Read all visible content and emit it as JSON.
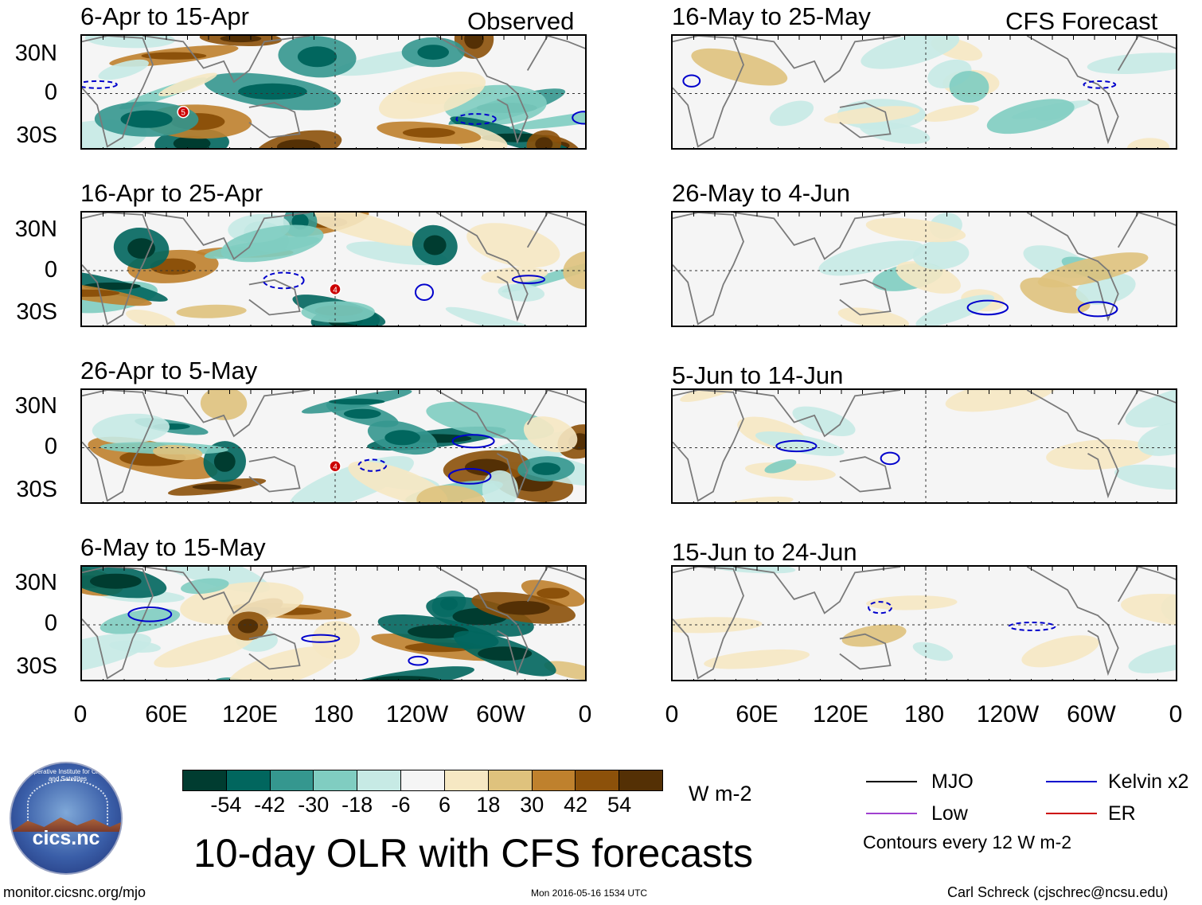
{
  "header": {
    "observed_label": "Observed",
    "forecast_label": "CFS Forecast"
  },
  "panels_left": [
    {
      "title": "6-Apr to 15-Apr",
      "markers": [
        "5"
      ]
    },
    {
      "title": "16-Apr to 25-Apr",
      "markers": [
        "4"
      ]
    },
    {
      "title": "26-Apr to 5-May",
      "markers": [
        "4"
      ]
    },
    {
      "title": "6-May to 15-May",
      "markers": []
    }
  ],
  "panels_right": [
    {
      "title": "16-May to 25-May"
    },
    {
      "title": "26-May to 4-Jun"
    },
    {
      "title": "5-Jun to 14-Jun"
    },
    {
      "title": "15-Jun to 24-Jun"
    }
  ],
  "lat_labels": [
    "30N",
    "0",
    "30S"
  ],
  "lon_labels": [
    "0",
    "60E",
    "120E",
    "180",
    "120W",
    "60W",
    "0"
  ],
  "colorbar": {
    "colors": [
      "#003c30",
      "#01665e",
      "#35978f",
      "#80cdc1",
      "#c7eae5",
      "#f5f5f5",
      "#f6e8c3",
      "#dfc27d",
      "#bf812d",
      "#8c510a",
      "#543005"
    ],
    "ticks": [
      "-54",
      "-42",
      "-30",
      "-18",
      "-6",
      "6",
      "18",
      "30",
      "42",
      "54"
    ],
    "unit": "W m-2"
  },
  "title": "10-day OLR with CFS forecasts",
  "legend": {
    "items": [
      {
        "label": "MJO",
        "color": "#000000"
      },
      {
        "label": "Kelvin x2",
        "color": "#0000cc"
      },
      {
        "label": "Low",
        "color": "#a040d0"
      },
      {
        "label": "ER",
        "color": "#cc0000"
      }
    ],
    "contours_note": "Contours every 12 W m-2"
  },
  "logo": {
    "text": "cics.nc",
    "arc_text": "Cooperative Institute for Climate and Satellites"
  },
  "footer": {
    "url": "monitor.cicsnc.org/mjo",
    "timestamp": "Mon 2016-05-16 1534 UTC",
    "author": "Carl Schreck (cjschrec@ncsu.edu)"
  }
}
